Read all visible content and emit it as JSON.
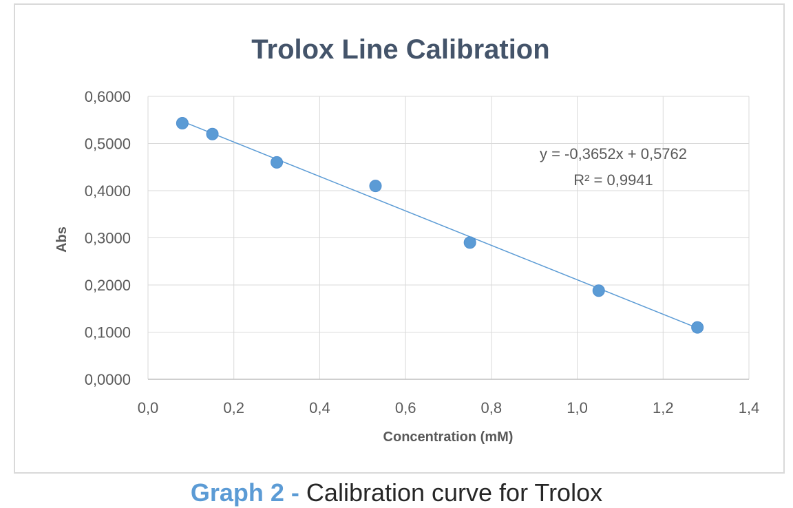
{
  "chart_data": {
    "type": "scatter",
    "title": "Trolox Line Calibration",
    "xlabel": "Concentration (mM)",
    "ylabel": "Abs",
    "xlim": [
      0,
      1.4
    ],
    "ylim": [
      0,
      0.6
    ],
    "x_ticks": [
      "0,0",
      "0,2",
      "0,4",
      "0,6",
      "0,8",
      "1,0",
      "1,2",
      "1,4"
    ],
    "y_ticks": [
      "0,0000",
      "0,1000",
      "0,2000",
      "0,3000",
      "0,4000",
      "0,5000",
      "0,6000"
    ],
    "grid": true,
    "series": [
      {
        "points": [
          {
            "x": 0.08,
            "y": 0.543
          },
          {
            "x": 0.15,
            "y": 0.52
          },
          {
            "x": 0.3,
            "y": 0.46
          },
          {
            "x": 0.53,
            "y": 0.41
          },
          {
            "x": 0.75,
            "y": 0.29
          },
          {
            "x": 1.05,
            "y": 0.188
          },
          {
            "x": 1.28,
            "y": 0.11
          }
        ]
      }
    ],
    "trendline": {
      "slope": -0.3652,
      "intercept": 0.5762,
      "equation": "y = -0,3652x + 0,5762",
      "r_squared": "R² = 0,9941"
    },
    "colors": {
      "marker": "#5b9bd5",
      "trendline": "#5b9bd5",
      "grid": "#d9d9d9",
      "axis_text": "#595959",
      "title": "#44546a"
    }
  },
  "caption": {
    "label": "Graph 2 -",
    "text": " Calibration curve for Trolox"
  }
}
